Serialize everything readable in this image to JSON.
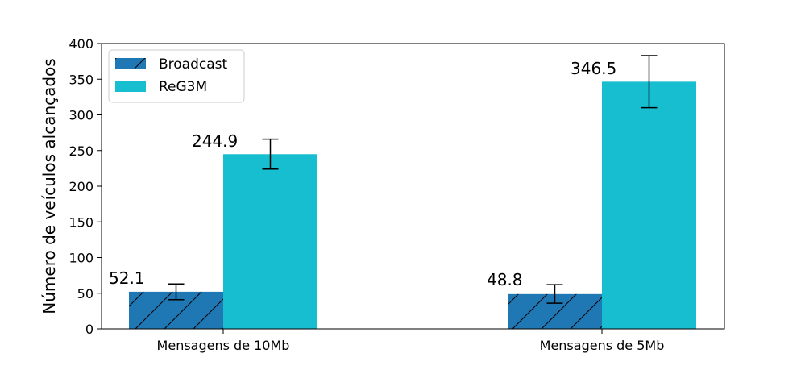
{
  "chart_data": {
    "type": "bar",
    "categories": [
      "Mensagens de 10Mb",
      "Mensagens de 5Mb"
    ],
    "series": [
      {
        "name": "Broadcast",
        "values": [
          52.1,
          48.8
        ],
        "error_low": [
          41,
          36
        ],
        "error_high": [
          63,
          62
        ],
        "value_labels": [
          "52.1",
          "48.8"
        ],
        "color": "#1f77b4",
        "hatch": "diagonal"
      },
      {
        "name": "ReG3M",
        "values": [
          244.9,
          346.5
        ],
        "error_low": [
          224,
          310
        ],
        "error_high": [
          266,
          383
        ],
        "value_labels": [
          "244.9",
          "346.5"
        ],
        "color": "#17becf",
        "hatch": "none"
      }
    ],
    "ylabel": "Número de veículos alcançados",
    "xlabel": "",
    "title": "",
    "ylim": [
      0,
      400
    ],
    "yticks": [
      "0",
      "50",
      "100",
      "150",
      "200",
      "250",
      "300",
      "350",
      "400"
    ],
    "grid": false,
    "legend_position": "top-left"
  }
}
